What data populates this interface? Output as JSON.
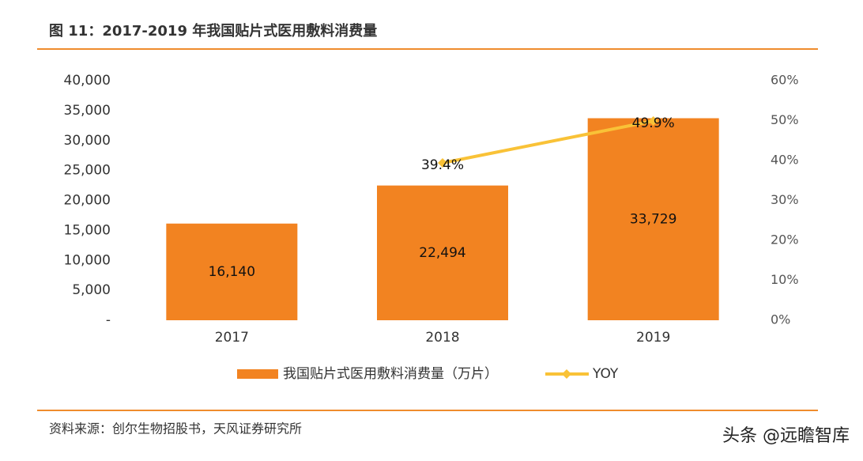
{
  "chart_data": {
    "type": "bar_line",
    "title": "图 11：2017-2019 年我国贴片式医用敷料消费量",
    "categories": [
      "2017",
      "2018",
      "2019"
    ],
    "series": [
      {
        "name": "我国贴片式医用敷料消费量（万片）",
        "color": "#f28321",
        "values": [
          16140,
          22494,
          33729
        ],
        "value_labels": [
          "16,140",
          "22,494",
          "33,729"
        ]
      },
      {
        "name": "YOY",
        "color": "#f9c237",
        "axis": "y2",
        "values": [
          null,
          39.4,
          49.9
        ],
        "value_labels": [
          null,
          "39.4%",
          "49.9%"
        ]
      }
    ],
    "ylim": [
      0,
      40000
    ],
    "yticks": [
      {
        "value": 0,
        "label": "-"
      },
      {
        "value": 5000,
        "label": "5,000"
      },
      {
        "value": 10000,
        "label": "10,000"
      },
      {
        "value": 15000,
        "label": "15,000"
      },
      {
        "value": 20000,
        "label": "20,000"
      },
      {
        "value": 25000,
        "label": "25,000"
      },
      {
        "value": 30000,
        "label": "30,000"
      },
      {
        "value": 35000,
        "label": "35,000"
      },
      {
        "value": 40000,
        "label": "40,000"
      }
    ],
    "y2lim": [
      0,
      60
    ],
    "y2ticks": [
      {
        "value": 0,
        "label": "0%"
      },
      {
        "value": 10,
        "label": "10%"
      },
      {
        "value": 20,
        "label": "20%"
      },
      {
        "value": 30,
        "label": "30%"
      },
      {
        "value": 40,
        "label": "40%"
      },
      {
        "value": 50,
        "label": "50%"
      },
      {
        "value": 60,
        "label": "60%"
      }
    ],
    "grid": false,
    "legend": "bottom",
    "source": "资料来源：创尔生物招股书，天风证券研究所",
    "watermark": "头条 @远瞻智库"
  }
}
